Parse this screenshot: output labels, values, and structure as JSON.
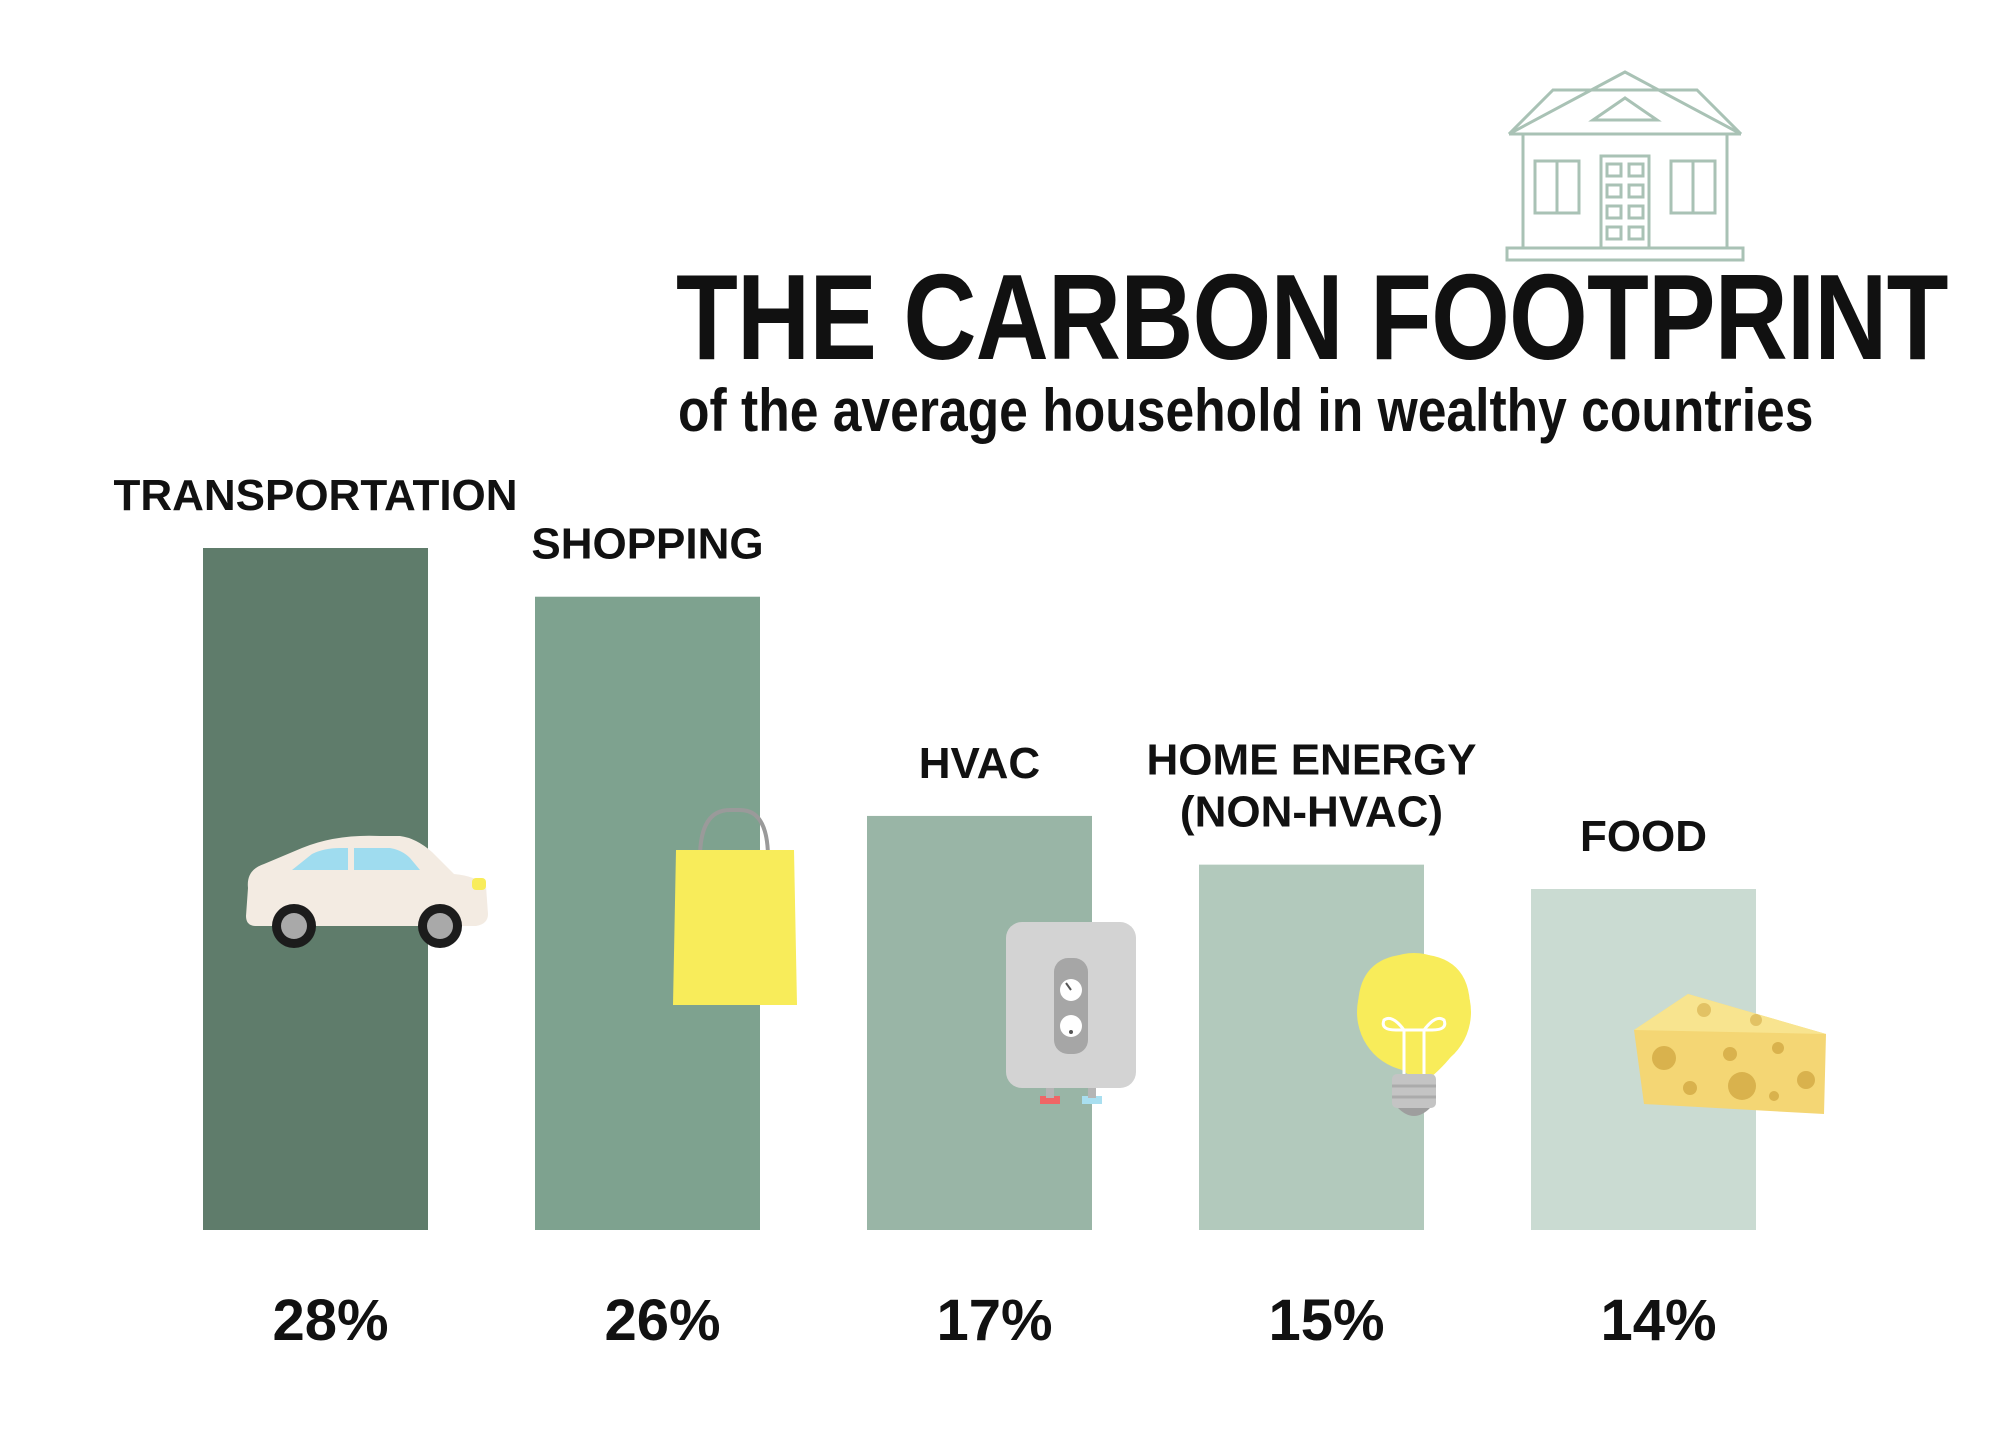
{
  "chart_data": {
    "type": "bar",
    "title": "THE CARBON FOOTPRINT",
    "subtitle": "of the average household in wealthy countries",
    "categories": [
      "TRANSPORTATION",
      "SHOPPING",
      "HVAC",
      "HOME ENERGY\n(NON-HVAC)",
      "FOOD"
    ],
    "values": [
      28,
      26,
      17,
      15,
      14
    ],
    "value_labels": [
      "28%",
      "26%",
      "17%",
      "15%",
      "14%"
    ],
    "unit": "%",
    "ylim": [
      0,
      28
    ],
    "grid": false,
    "legend": "none",
    "bar_colors": [
      "#5f7c6b",
      "#7ea28f",
      "#99b5a6",
      "#b2c9bc",
      "#cadbd2"
    ]
  },
  "icons": [
    "house-icon",
    "car-icon",
    "shopping-bag-icon",
    "thermostat-icon",
    "light-bulb-icon",
    "cheese-icon"
  ],
  "colors": {
    "house_outline": "#a9c2b5",
    "car_body": "#f3ebe2",
    "car_window": "#9fdcef",
    "bag": "#f8ec5a",
    "bulb": "#f8ec5a",
    "cheese": "#f4d674",
    "thermostat": "#d3d3d3"
  }
}
